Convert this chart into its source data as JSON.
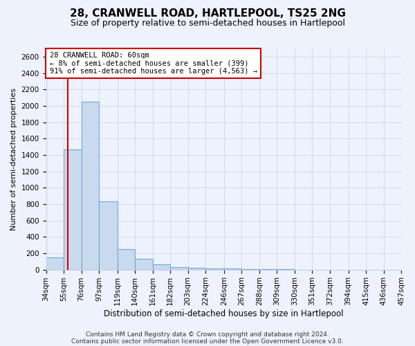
{
  "title1": "28, CRANWELL ROAD, HARTLEPOOL, TS25 2NG",
  "title2": "Size of property relative to semi-detached houses in Hartlepool",
  "xlabel": "Distribution of semi-detached houses by size in Hartlepool",
  "ylabel": "Number of semi-detached properties",
  "bin_edges": [
    34,
    55,
    76,
    97,
    119,
    140,
    161,
    182,
    203,
    224,
    246,
    267,
    288,
    309,
    330,
    351,
    372,
    394,
    415,
    436,
    457
  ],
  "bar_heights": [
    150,
    1470,
    2050,
    830,
    250,
    130,
    60,
    30,
    20,
    15,
    10,
    8,
    5,
    5,
    0,
    0,
    0,
    0,
    0,
    0
  ],
  "bar_color": "#c9d9ee",
  "bar_edge_color": "#6fa8d4",
  "property_size": 60,
  "red_line_color": "#cc0000",
  "annotation_line1": "28 CRANWELL ROAD: 60sqm",
  "annotation_line2": "← 8% of semi-detached houses are smaller (399)",
  "annotation_line3": "91% of semi-detached houses are larger (4,563) →",
  "annotation_box_color": "#ffffff",
  "annotation_box_edge_color": "#cc0000",
  "ylim": [
    0,
    2700
  ],
  "yticks": [
    0,
    200,
    400,
    600,
    800,
    1000,
    1200,
    1400,
    1600,
    1800,
    2000,
    2200,
    2400,
    2600
  ],
  "footer1": "Contains HM Land Registry data © Crown copyright and database right 2024.",
  "footer2": "Contains public sector information licensed under the Open Government Licence v3.0.",
  "bg_color": "#eef2fc",
  "grid_color": "#c5cfe8",
  "title1_fontsize": 11,
  "title2_fontsize": 9,
  "xlabel_fontsize": 8.5,
  "ylabel_fontsize": 8,
  "tick_fontsize": 7.5,
  "annotation_fontsize": 7.5,
  "footer_fontsize": 6.5
}
